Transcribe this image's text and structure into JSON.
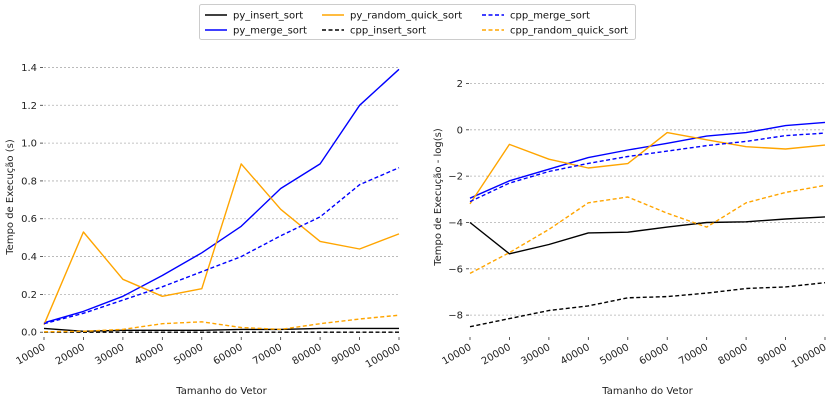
{
  "chart_data": [
    {
      "type": "line",
      "xlabel": "Tamanho do Vetor",
      "ylabel": "Tempo de Execução (s)",
      "x": [
        10000,
        20000,
        30000,
        40000,
        50000,
        60000,
        70000,
        80000,
        90000,
        100000
      ],
      "xticks": [
        "10000",
        "20000",
        "30000",
        "40000",
        "50000",
        "60000",
        "70000",
        "80000",
        "90000",
        "100000"
      ],
      "ylim": [
        -0.02,
        1.45
      ],
      "yticks": [
        0.0,
        0.2,
        0.4,
        0.6,
        0.8,
        1.0,
        1.2,
        1.4
      ],
      "ytick_labels": [
        "0.0",
        "0.2",
        "0.4",
        "0.6",
        "0.8",
        "1.0",
        "1.2",
        "1.4"
      ],
      "grid": "horizontal",
      "series": [
        {
          "name": "py_insert_sort",
          "color": "#000000",
          "dash": "solid",
          "values": [
            0.02,
            0.005,
            0.01,
            0.01,
            0.01,
            0.015,
            0.015,
            0.02,
            0.02,
            0.02
          ]
        },
        {
          "name": "py_merge_sort",
          "color": "#0000ff",
          "dash": "solid",
          "values": [
            0.05,
            0.11,
            0.19,
            0.3,
            0.42,
            0.56,
            0.76,
            0.89,
            1.2,
            1.39
          ]
        },
        {
          "name": "py_random_quick_sort",
          "color": "#ffa500",
          "dash": "solid",
          "values": [
            0.04,
            0.53,
            0.28,
            0.19,
            0.23,
            0.89,
            0.65,
            0.48,
            0.44,
            0.52
          ]
        },
        {
          "name": "cpp_insert_sort",
          "color": "#000000",
          "dash": "dashed",
          "values": [
            0.0,
            0.0,
            0.0,
            0.0,
            0.0,
            0.0,
            0.0,
            0.0,
            0.0,
            0.0
          ]
        },
        {
          "name": "cpp_merge_sort",
          "color": "#0000ff",
          "dash": "dashed",
          "values": [
            0.045,
            0.1,
            0.17,
            0.24,
            0.32,
            0.4,
            0.51,
            0.61,
            0.78,
            0.87
          ]
        },
        {
          "name": "cpp_random_quick_sort",
          "color": "#ffa500",
          "dash": "dashed",
          "values": [
            0.002,
            0.005,
            0.015,
            0.045,
            0.055,
            0.025,
            0.015,
            0.045,
            0.07,
            0.09
          ]
        }
      ]
    },
    {
      "type": "line",
      "xlabel": "Tamanho do Vetor",
      "ylabel": "Tempo de Execução - log(s)",
      "x": [
        10000,
        20000,
        30000,
        40000,
        50000,
        60000,
        70000,
        80000,
        90000,
        100000
      ],
      "xticks": [
        "10000",
        "20000",
        "30000",
        "40000",
        "50000",
        "60000",
        "70000",
        "80000",
        "90000",
        "100000"
      ],
      "ylim": [
        -8.9,
        3.1
      ],
      "yticks": [
        -8,
        -6,
        -4,
        -2,
        0,
        2
      ],
      "ytick_labels": [
        "−8",
        "−6",
        "−4",
        "−2",
        "0",
        "2"
      ],
      "grid": "horizontal",
      "series": [
        {
          "name": "py_insert_sort",
          "color": "#000000",
          "dash": "solid",
          "values": [
            -4.0,
            -5.35,
            -4.95,
            -4.45,
            -4.42,
            -4.2,
            -4.0,
            -3.97,
            -3.85,
            -3.76
          ]
        },
        {
          "name": "py_merge_sort",
          "color": "#0000ff",
          "dash": "solid",
          "values": [
            -2.95,
            -2.2,
            -1.7,
            -1.2,
            -0.87,
            -0.58,
            -0.27,
            -0.12,
            0.18,
            0.32
          ]
        },
        {
          "name": "py_random_quick_sort",
          "color": "#ffa500",
          "dash": "solid",
          "values": [
            -3.2,
            -0.63,
            -1.27,
            -1.65,
            -1.46,
            -0.12,
            -0.43,
            -0.73,
            -0.83,
            -0.66
          ]
        },
        {
          "name": "cpp_insert_sort",
          "color": "#000000",
          "dash": "dashed",
          "values": [
            -8.5,
            -8.15,
            -7.8,
            -7.6,
            -7.25,
            -7.2,
            -7.05,
            -6.85,
            -6.78,
            -6.6
          ]
        },
        {
          "name": "cpp_merge_sort",
          "color": "#0000ff",
          "dash": "dashed",
          "values": [
            -3.1,
            -2.3,
            -1.8,
            -1.45,
            -1.15,
            -0.92,
            -0.68,
            -0.5,
            -0.25,
            -0.14
          ]
        },
        {
          "name": "cpp_random_quick_sort",
          "color": "#ffa500",
          "dash": "dashed",
          "values": [
            -6.2,
            -5.3,
            -4.3,
            -3.15,
            -2.9,
            -3.6,
            -4.2,
            -3.15,
            -2.7,
            -2.4
          ]
        }
      ]
    }
  ],
  "legend": {
    "placement": "top-center",
    "columns": 3,
    "entries": [
      {
        "label": "py_insert_sort",
        "color": "#000000",
        "dash": "solid"
      },
      {
        "label": "py_merge_sort",
        "color": "#0000ff",
        "dash": "solid"
      },
      {
        "label": "py_random_quick_sort",
        "color": "#ffa500",
        "dash": "solid"
      },
      {
        "label": "cpp_insert_sort",
        "color": "#000000",
        "dash": "dashed"
      },
      {
        "label": "cpp_merge_sort",
        "color": "#0000ff",
        "dash": "dashed"
      },
      {
        "label": "cpp_random_quick_sort",
        "color": "#ffa500",
        "dash": "dashed"
      }
    ]
  }
}
